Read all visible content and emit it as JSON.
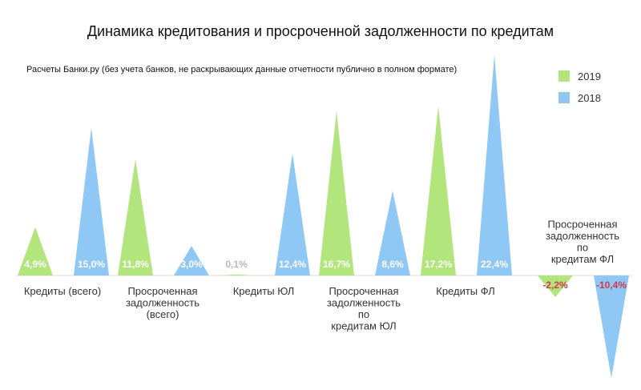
{
  "chart_data": {
    "type": "bar",
    "title": "Динамика кредитования и просроченной задолженности по кредитам",
    "subtitle": "Расчеты Банки.ру (без учета банков, не раскрывающих данные отчетности публично в полном формате)",
    "categories": [
      [
        "Кредиты (всего)"
      ],
      [
        "Просроченная",
        "задолженность",
        "(всего)"
      ],
      [
        "Кредиты ЮЛ"
      ],
      [
        "Просроченная",
        "задолженность",
        "по",
        "кредитам ЮЛ"
      ],
      [
        "Кредиты ФЛ"
      ],
      [
        "Просроченная",
        "задолженность",
        "по",
        "кредитам ФЛ"
      ]
    ],
    "series": [
      {
        "name": "2019",
        "color": "#b3e57d",
        "values": [
          4.9,
          11.8,
          0.1,
          16.7,
          17.2,
          -2.2
        ],
        "labels": [
          "4,9%",
          "11,8%",
          "0,1%",
          "16,7%",
          "17,2%",
          "-2,2%"
        ]
      },
      {
        "name": "2018",
        "color": "#8fc7f5",
        "values": [
          15.0,
          3.0,
          12.4,
          8.6,
          22.4,
          -10.4
        ],
        "labels": [
          "15,0%",
          "3,0%",
          "12,4%",
          "8,6%",
          "22,4%",
          "-10,4%"
        ]
      }
    ],
    "legend_position": "top-right",
    "grid": false,
    "colors": {
      "positive_label": "#ffffff",
      "small_label": "#bbbbbb",
      "negative_label": "#d0384f",
      "baseline": "#dddddd"
    }
  }
}
